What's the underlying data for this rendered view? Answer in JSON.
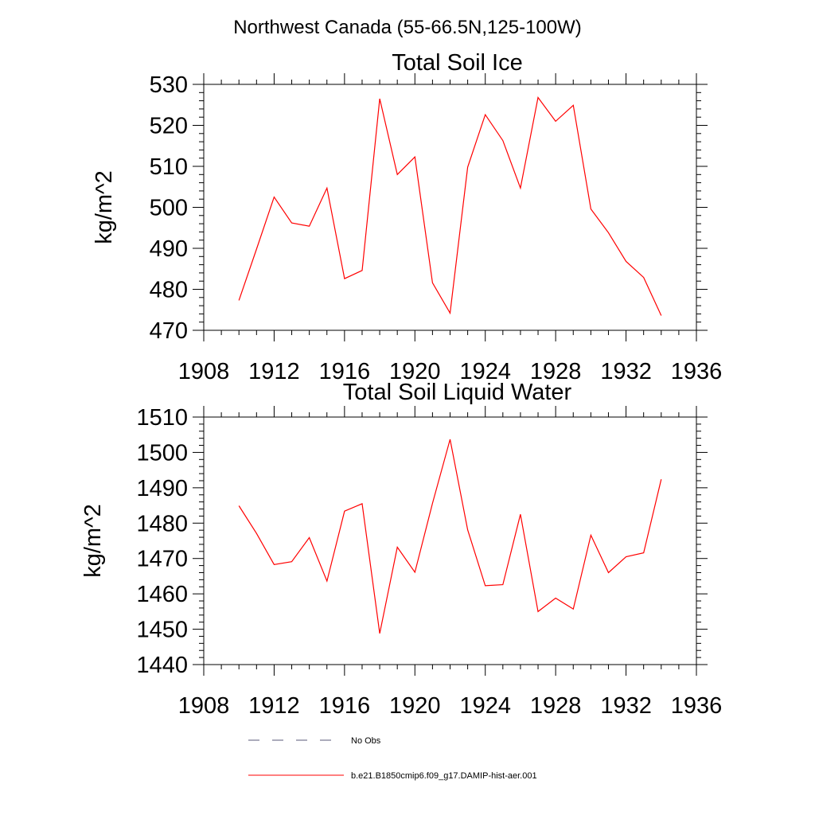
{
  "figure_title": "Northwest Canada (55-66.5N,125-100W)",
  "chart_data": [
    {
      "type": "line",
      "title": "Total Soil Ice",
      "xlabel": "",
      "ylabel": "kg/m^2",
      "xlim": [
        1908,
        1936
      ],
      "ylim": [
        470,
        530
      ],
      "xticks": [
        1908,
        1912,
        1916,
        1920,
        1924,
        1928,
        1932,
        1936
      ],
      "yticks": [
        470,
        480,
        490,
        500,
        510,
        520,
        530
      ],
      "grid": false,
      "series": [
        {
          "name": "b.e21.B1850cmip6.f09_g17.DAMIP-hist-aer.001",
          "color": "#ff0000",
          "x": [
            1910,
            1911,
            1912,
            1913,
            1914,
            1915,
            1916,
            1917,
            1918,
            1919,
            1920,
            1921,
            1922,
            1923,
            1924,
            1925,
            1926,
            1927,
            1928,
            1929,
            1930,
            1931,
            1932,
            1933,
            1934
          ],
          "values": [
            477.3,
            489.8,
            502.5,
            496.2,
            495.4,
            504.7,
            482.6,
            484.6,
            526.5,
            508.0,
            512.3,
            481.6,
            474.2,
            509.8,
            522.6,
            516.3,
            504.7,
            526.8,
            521.0,
            524.9,
            499.6,
            493.8,
            486.8,
            482.9,
            473.6
          ]
        }
      ]
    },
    {
      "type": "line",
      "title": "Total Soil Liquid Water",
      "xlabel": "",
      "ylabel": "kg/m^2",
      "xlim": [
        1908,
        1936
      ],
      "ylim": [
        1440,
        1510
      ],
      "xticks": [
        1908,
        1912,
        1916,
        1920,
        1924,
        1928,
        1932,
        1936
      ],
      "yticks": [
        1440,
        1450,
        1460,
        1470,
        1480,
        1490,
        1500,
        1510
      ],
      "grid": false,
      "series": [
        {
          "name": "b.e21.B1850cmip6.f09_g17.DAMIP-hist-aer.001",
          "color": "#ff0000",
          "x": [
            1910,
            1911,
            1912,
            1913,
            1914,
            1915,
            1916,
            1917,
            1918,
            1919,
            1920,
            1921,
            1922,
            1923,
            1924,
            1925,
            1926,
            1927,
            1928,
            1929,
            1930,
            1931,
            1932,
            1933,
            1934
          ],
          "values": [
            1484.9,
            1477.1,
            1468.3,
            1469.1,
            1475.9,
            1463.6,
            1483.4,
            1485.5,
            1448.8,
            1473.2,
            1466.1,
            1485.6,
            1503.7,
            1478.1,
            1462.3,
            1462.6,
            1482.5,
            1455.0,
            1458.8,
            1455.7,
            1476.6,
            1466.0,
            1470.5,
            1471.6,
            1492.4
          ]
        }
      ]
    }
  ],
  "legend": {
    "placement": "bottom",
    "entries": [
      {
        "label": "No Obs",
        "style": "dashed",
        "color": "#5a5a7a"
      },
      {
        "label": "b.e21.B1850cmip6.f09_g17.DAMIP-hist-aer.001",
        "style": "solid",
        "color": "#ff0000"
      }
    ]
  }
}
